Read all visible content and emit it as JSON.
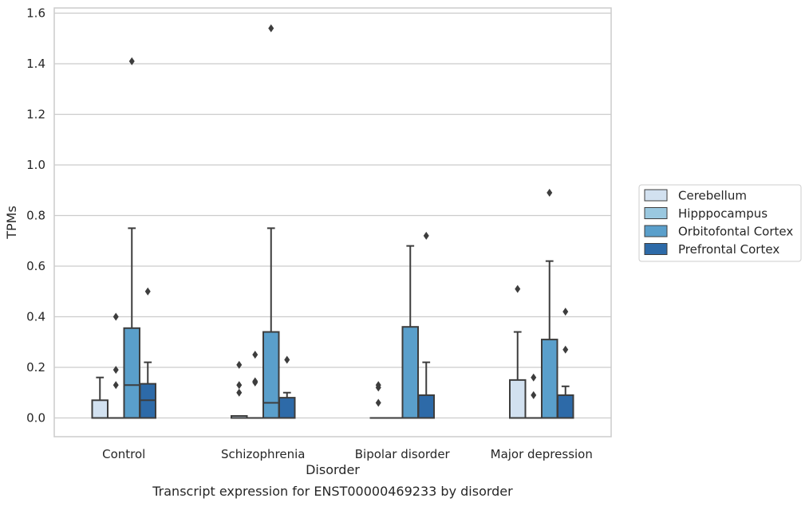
{
  "chart_data": {
    "type": "box",
    "title": "",
    "caption": "Transcript expression for ENST00000469233 by disorder",
    "xlabel": "Disorder",
    "ylabel": "TPMs",
    "ylim": [
      -0.07,
      1.62
    ],
    "yticks": [
      0.0,
      0.2,
      0.4,
      0.6,
      0.8,
      1.0,
      1.2,
      1.4,
      1.6
    ],
    "ytick_labels": [
      "0.0",
      "0.2",
      "0.4",
      "0.6",
      "0.8",
      "1.0",
      "1.2",
      "1.4",
      "1.6"
    ],
    "grid": "horizontal",
    "legend_position": "right",
    "categories": [
      "Control",
      "Schizophrenia",
      "Bipolar disorder",
      "Major depression"
    ],
    "series": [
      {
        "name": "Cerebellum",
        "color": "#d2e1f0",
        "boxes": [
          {
            "q1": 0.0,
            "median": 0.0,
            "q3": 0.07,
            "whisker_low": 0.0,
            "whisker_high": 0.16,
            "outliers": []
          },
          {
            "q1": 0.0,
            "median": 0.0,
            "q3": 0.008,
            "whisker_low": 0.0,
            "whisker_high": 0.008,
            "outliers": [
              0.1,
              0.13,
              0.21
            ]
          },
          {
            "q1": 0.0,
            "median": 0.0,
            "q3": 0.0,
            "whisker_low": 0.0,
            "whisker_high": 0.0,
            "outliers": [
              0.06,
              0.12,
              0.13
            ]
          },
          {
            "q1": 0.0,
            "median": 0.0,
            "q3": 0.15,
            "whisker_low": 0.0,
            "whisker_high": 0.34,
            "outliers": [
              0.51
            ]
          }
        ]
      },
      {
        "name": "Hipppocampus",
        "color": "#9ac8e0",
        "boxes": [
          {
            "q1": 0.0,
            "median": 0.0,
            "q3": 0.0,
            "whisker_low": 0.0,
            "whisker_high": 0.0,
            "outliers": [
              0.13,
              0.19,
              0.4
            ]
          },
          {
            "q1": 0.0,
            "median": 0.0,
            "q3": 0.0,
            "whisker_low": 0.0,
            "whisker_high": 0.0,
            "outliers": [
              0.14,
              0.145,
              0.25
            ]
          },
          {
            "q1": 0.0,
            "median": 0.0,
            "q3": 0.0,
            "whisker_low": 0.0,
            "whisker_high": 0.0,
            "outliers": []
          },
          {
            "q1": 0.0,
            "median": 0.0,
            "q3": 0.0,
            "whisker_low": 0.0,
            "whisker_high": 0.0,
            "outliers": [
              0.09,
              0.16
            ]
          }
        ]
      },
      {
        "name": "Orbitofontal Cortex",
        "color": "#5a9fcb",
        "boxes": [
          {
            "q1": 0.0,
            "median": 0.13,
            "q3": 0.355,
            "whisker_low": 0.0,
            "whisker_high": 0.75,
            "outliers": [
              1.41
            ]
          },
          {
            "q1": 0.0,
            "median": 0.06,
            "q3": 0.34,
            "whisker_low": 0.0,
            "whisker_high": 0.75,
            "outliers": [
              1.54
            ]
          },
          {
            "q1": 0.0,
            "median": 0.0,
            "q3": 0.36,
            "whisker_low": 0.0,
            "whisker_high": 0.68,
            "outliers": []
          },
          {
            "q1": 0.0,
            "median": 0.0,
            "q3": 0.31,
            "whisker_low": 0.0,
            "whisker_high": 0.62,
            "outliers": [
              0.89
            ]
          }
        ]
      },
      {
        "name": "Prefrontal Cortex",
        "color": "#2d6aa8",
        "boxes": [
          {
            "q1": 0.0,
            "median": 0.07,
            "q3": 0.135,
            "whisker_low": 0.0,
            "whisker_high": 0.22,
            "outliers": [
              0.5
            ]
          },
          {
            "q1": 0.0,
            "median": 0.0,
            "q3": 0.08,
            "whisker_low": 0.0,
            "whisker_high": 0.1,
            "outliers": [
              0.23
            ]
          },
          {
            "q1": 0.0,
            "median": 0.0,
            "q3": 0.09,
            "whisker_low": 0.0,
            "whisker_high": 0.22,
            "outliers": [
              0.72
            ]
          },
          {
            "q1": 0.0,
            "median": 0.0,
            "q3": 0.09,
            "whisker_low": 0.0,
            "whisker_high": 0.125,
            "outliers": [
              0.27,
              0.42
            ]
          }
        ]
      }
    ]
  }
}
